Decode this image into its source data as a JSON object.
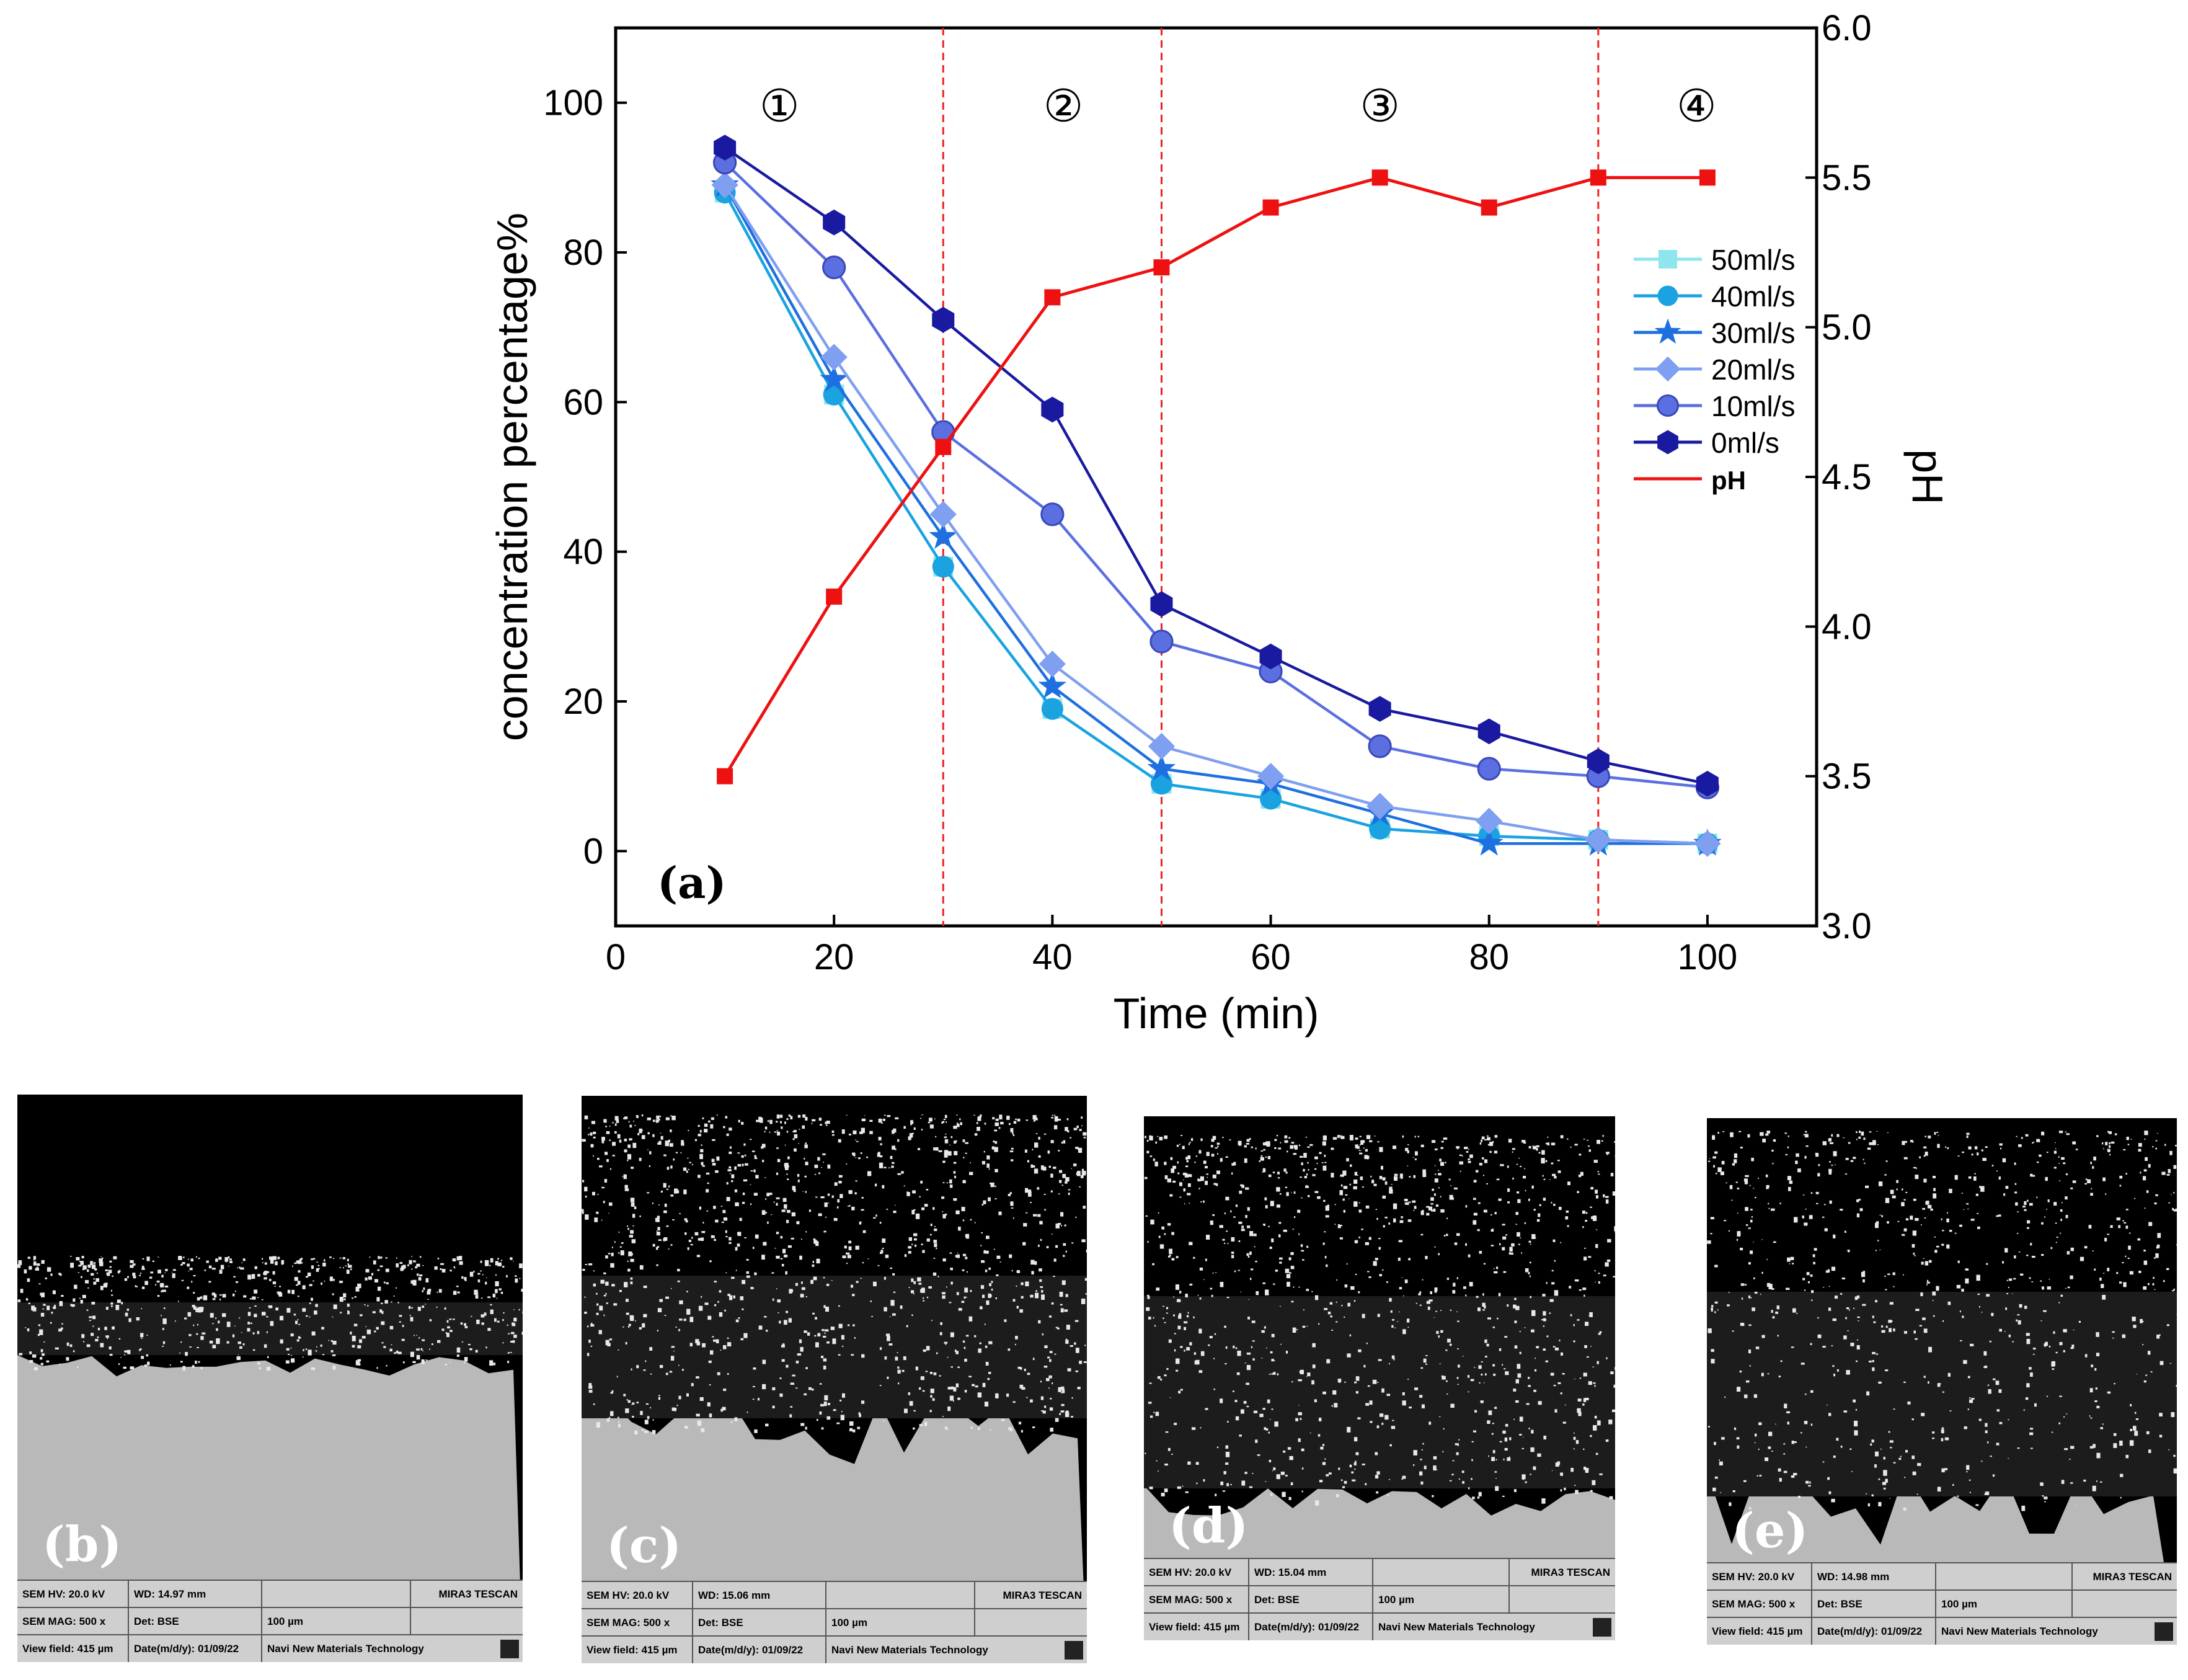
{
  "chart_data": {
    "type": "line",
    "panel_label": "(a)",
    "xlabel": "Time (min)",
    "ylabel": "concentration percentage%",
    "y2label": "pH",
    "xlim": [
      0,
      110
    ],
    "ylim": [
      -10,
      110
    ],
    "y2lim": [
      3.0,
      6.0
    ],
    "x_ticks": [
      0,
      20,
      40,
      60,
      80,
      100
    ],
    "y_ticks": [
      0,
      20,
      40,
      60,
      80,
      100
    ],
    "y2_ticks": [
      3.0,
      3.5,
      4.0,
      4.5,
      5.0,
      5.5,
      6.0
    ],
    "y2_tick_labels": [
      "3.0",
      "3.5",
      "4.0",
      "4.5",
      "5.0",
      "5.5",
      "6.0"
    ],
    "stage_lines": [
      30,
      50,
      90
    ],
    "stages": [
      {
        "label": "①",
        "x": 15
      },
      {
        "label": "②",
        "x": 41
      },
      {
        "label": "③",
        "x": 70
      },
      {
        "label": "④",
        "x": 99
      }
    ],
    "series": [
      {
        "name": "50ml/s",
        "marker": "square",
        "color": "#8ee5ee",
        "axis": "left",
        "x": [
          10,
          20,
          30,
          40,
          50,
          60,
          70,
          80,
          90,
          100
        ],
        "values": [
          88,
          61,
          38,
          19,
          9,
          7,
          3,
          2,
          1.5,
          1
        ]
      },
      {
        "name": "40ml/s",
        "marker": "circle",
        "color": "#1aa3e0",
        "axis": "left",
        "x": [
          10,
          20,
          30,
          40,
          50,
          60,
          70,
          80,
          90,
          100
        ],
        "values": [
          88,
          61,
          38,
          19,
          9,
          7,
          3,
          2,
          1.5,
          1
        ]
      },
      {
        "name": "30ml/s",
        "marker": "star",
        "color": "#1e6fe0",
        "axis": "left",
        "x": [
          10,
          20,
          30,
          40,
          50,
          60,
          70,
          80,
          90,
          100
        ],
        "values": [
          89,
          63,
          42,
          22,
          11,
          9,
          5,
          1,
          1,
          1
        ]
      },
      {
        "name": "20ml/s",
        "marker": "diamond",
        "color": "#7f9ff0",
        "axis": "left",
        "x": [
          10,
          20,
          30,
          40,
          50,
          60,
          70,
          80,
          90,
          100
        ],
        "values": [
          89,
          66,
          45,
          25,
          14,
          10,
          6,
          4,
          1.5,
          1
        ]
      },
      {
        "name": "10ml/s",
        "marker": "ball",
        "color": "#5b6fe0",
        "axis": "left",
        "x": [
          10,
          20,
          30,
          40,
          50,
          60,
          70,
          80,
          90,
          100
        ],
        "values": [
          92,
          78,
          56,
          45,
          28,
          24,
          14,
          11,
          10,
          8.5
        ]
      },
      {
        "name": "0ml/s",
        "marker": "hexagon",
        "color": "#1a1aa0",
        "axis": "left",
        "x": [
          10,
          20,
          30,
          40,
          50,
          60,
          70,
          80,
          90,
          100
        ],
        "values": [
          94,
          84,
          71,
          59,
          33,
          26,
          19,
          16,
          12,
          9
        ]
      },
      {
        "name": "pH",
        "marker": "square",
        "color": "#ee1111",
        "axis": "right",
        "x": [
          10,
          20,
          30,
          40,
          50,
          60,
          70,
          80,
          90,
          100
        ],
        "values": [
          3.5,
          4.1,
          4.6,
          5.1,
          5.2,
          5.4,
          5.5,
          5.4,
          5.5,
          5.5
        ]
      }
    ],
    "legend_position": "right-middle"
  },
  "sem_panels": [
    {
      "label": "(b)",
      "hv": "SEM HV: 20.0 kV",
      "wd": "WD: 14.97 mm",
      "mag": "SEM MAG: 500 x",
      "det": "Det: BSE",
      "scale": "100 µm",
      "field": "View field: 415 µm",
      "date": "Date(m/d/y): 01/09/22",
      "brand": "MIRA3 TESCAN",
      "org": "Navi New Materials Technology"
    },
    {
      "label": "(c)",
      "hv": "SEM HV: 20.0 kV",
      "wd": "WD: 15.06 mm",
      "mag": "SEM MAG: 500 x",
      "det": "Det: BSE",
      "scale": "100 µm",
      "field": "View field: 415 µm",
      "date": "Date(m/d/y): 01/09/22",
      "brand": "MIRA3 TESCAN",
      "org": "Navi New Materials Technology"
    },
    {
      "label": "(d)",
      "hv": "SEM HV: 20.0 kV",
      "wd": "WD: 15.04 mm",
      "mag": "SEM MAG: 500 x",
      "det": "Det: BSE",
      "scale": "100 µm",
      "field": "View field: 415 µm",
      "date": "Date(m/d/y): 01/09/22",
      "brand": "MIRA3 TESCAN",
      "org": "Navi New Materials Technology"
    },
    {
      "label": "(e)",
      "hv": "SEM HV: 20.0 kV",
      "wd": "WD: 14.98 mm",
      "mag": "SEM MAG: 500 x",
      "det": "Det: BSE",
      "scale": "100 µm",
      "field": "View field: 415 µm",
      "date": "Date(m/d/y): 01/09/22",
      "brand": "MIRA3 TESCAN",
      "org": "Navi New Materials Technology"
    }
  ]
}
